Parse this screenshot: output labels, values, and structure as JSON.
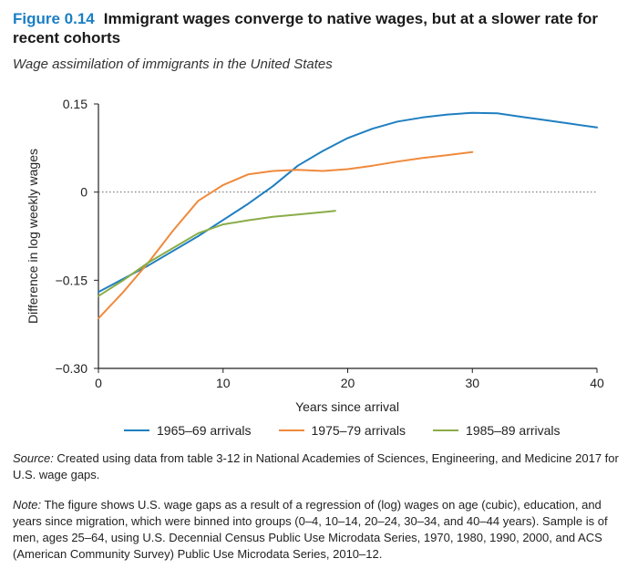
{
  "figure": {
    "number": "Figure 0.14",
    "title": "Immigrant wages converge to native wages, but at a slower rate for recent cohorts",
    "subtitle": "Wage assimilation of immigrants in the United States"
  },
  "chart_data": {
    "type": "line",
    "xlabel": "Years since arrival",
    "ylabel": "Difference in log weekly wages",
    "xlim": [
      0,
      40
    ],
    "ylim": [
      -0.3,
      0.15
    ],
    "x_ticks": [
      0,
      10,
      20,
      30,
      40
    ],
    "y_ticks": [
      0.15,
      0,
      -0.15,
      -0.3
    ],
    "y_tick_labels": [
      "0.15",
      "0",
      "−0.15",
      "−0.30"
    ],
    "reference_line": 0,
    "grid": false,
    "legend_position": "bottom",
    "series": [
      {
        "name": "1965–69 arrivals",
        "color": "#1f7fc1",
        "x": [
          0,
          4,
          8,
          12,
          14,
          16,
          18,
          20,
          22,
          24,
          26,
          28,
          30,
          32,
          34,
          36,
          38,
          40
        ],
        "y": [
          -0.17,
          -0.125,
          -0.075,
          -0.02,
          0.01,
          0.045,
          0.07,
          0.092,
          0.108,
          0.12,
          0.127,
          0.132,
          0.135,
          0.134,
          0.128,
          0.122,
          0.116,
          0.11
        ]
      },
      {
        "name": "1975–79 arrivals",
        "color": "#ef8a3c",
        "x": [
          0,
          2,
          4,
          6,
          8,
          10,
          12,
          14,
          16,
          18,
          20,
          22,
          24,
          26,
          28,
          30
        ],
        "y": [
          -0.215,
          -0.17,
          -0.12,
          -0.065,
          -0.015,
          0.012,
          0.03,
          0.036,
          0.038,
          0.036,
          0.039,
          0.045,
          0.052,
          0.058,
          0.063,
          0.068
        ]
      },
      {
        "name": "1985–89 arrivals",
        "color": "#8aac48",
        "x": [
          0,
          2,
          4,
          6,
          8,
          10,
          12,
          14,
          16,
          18,
          19
        ],
        "y": [
          -0.177,
          -0.15,
          -0.12,
          -0.095,
          -0.07,
          -0.055,
          -0.048,
          -0.042,
          -0.038,
          -0.034,
          -0.032
        ]
      }
    ]
  },
  "source": {
    "label": "Source:",
    "text": " Created using data from table 3-12 in National Academies of Sciences, Engineering, and Medicine 2017 for U.S. wage gaps."
  },
  "note": {
    "label": "Note:",
    "text": " The figure shows U.S. wage gaps as a result of a regression of (log) wages on age (cubic), education, and years since migration, which were binned into groups (0–4, 10–14, 20–24, 30–34, and 40–44 years). Sample is of men, ages 25–64, using U.S. Decennial Census Public Use Microdata Series, 1970, 1980, 1990, 2000, and ACS (American Community Survey) Public Use Microdata Series, 2010–12."
  }
}
